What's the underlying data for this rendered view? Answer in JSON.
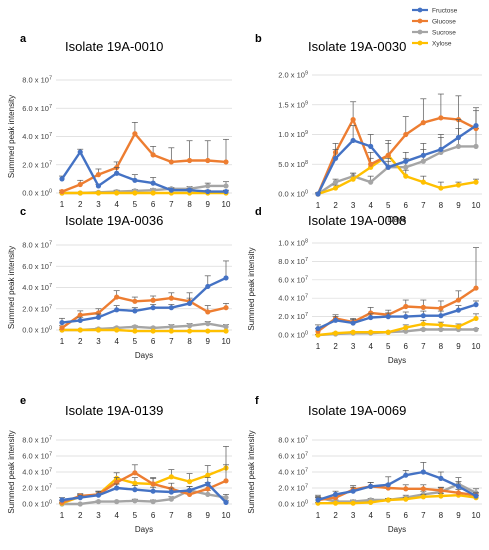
{
  "colors": {
    "Fructose": "#4472C4",
    "Glucose": "#ED7D31",
    "Sucrose": "#A5A5A5",
    "Xylose": "#FFC000"
  },
  "legend": [
    "Fructose",
    "Glucose",
    "Sucrose",
    "Xylose"
  ],
  "chart_data": [
    {
      "type": "line",
      "letter": "a",
      "title": "Isolate 19A-0010",
      "xlabel": "",
      "ylabel": "Summed peak intensity",
      "x": [
        1,
        2,
        3,
        4,
        5,
        6,
        7,
        8,
        9,
        10
      ],
      "ylim": [
        0,
        80000000.0
      ],
      "yticks": [
        0,
        20000000.0,
        40000000.0,
        60000000.0,
        80000000.0
      ],
      "ytick_labels": [
        [
          "0.0",
          "0"
        ],
        [
          "2.0",
          "7"
        ],
        [
          "4.0",
          "7"
        ],
        [
          "6.0",
          "7"
        ],
        [
          "8.0",
          "7"
        ]
      ],
      "series": [
        {
          "name": "Fructose",
          "values": [
            10000000.0,
            29000000.0,
            5000000.0,
            14000000.0,
            9000000.0,
            7000000.0,
            2000000.0,
            2000000.0,
            1000000.0,
            1000000.0
          ],
          "err": [
            2000000.0,
            2000000.0,
            1000000.0,
            4000000.0,
            4000000.0,
            4000000.0,
            1000000.0,
            1000000.0,
            1000000.0,
            1000000.0
          ]
        },
        {
          "name": "Glucose",
          "values": [
            1000000.0,
            6000000.0,
            13000000.0,
            18000000.0,
            42000000.0,
            27000000.0,
            22000000.0,
            23000000.0,
            23000000.0,
            22000000.0
          ],
          "err": [
            1000000.0,
            3000000.0,
            4000000.0,
            4000000.0,
            8000000.0,
            6000000.0,
            10000000.0,
            14000000.0,
            14000000.0,
            16000000.0
          ]
        },
        {
          "name": "Sucrose",
          "values": [
            0.0,
            0.0,
            500000.0,
            1000000.0,
            1500000.0,
            2000000.0,
            3000000.0,
            3000000.0,
            5000000.0,
            5000000.0
          ],
          "err": [
            500000.0,
            500000.0,
            500000.0,
            1000000.0,
            1000000.0,
            1000000.0,
            1000000.0,
            1500000.0,
            2000000.0,
            3000000.0
          ]
        },
        {
          "name": "Xylose",
          "values": [
            0.0,
            0.0,
            0.0,
            0.0,
            0.0,
            0.0,
            0.0,
            0.0,
            0.0,
            0.0
          ],
          "err": [
            0,
            0,
            0,
            0,
            0,
            0,
            0,
            0,
            0,
            0
          ]
        }
      ]
    },
    {
      "type": "line",
      "letter": "b",
      "title": "Isolate 19A-0030",
      "xlabel": "Days",
      "ylabel": "",
      "x": [
        1,
        2,
        3,
        4,
        5,
        6,
        7,
        8,
        9,
        10
      ],
      "ylim": [
        0,
        2000000000.0
      ],
      "yticks": [
        0,
        500000000.0,
        1000000000.0,
        1500000000.0,
        2000000000.0
      ],
      "ytick_labels": [
        [
          "0.0",
          "0"
        ],
        [
          "5.0",
          "8"
        ],
        [
          "1.0",
          "9"
        ],
        [
          "1.5",
          "9"
        ],
        [
          "2.0",
          "9"
        ]
      ],
      "series": [
        {
          "name": "Fructose",
          "values": [
            0.0,
            600000000.0,
            900000000.0,
            800000000.0,
            450000000.0,
            550000000.0,
            650000000.0,
            750000000.0,
            950000000.0,
            1150000000.0
          ],
          "err": [
            20000000.0,
            150000000.0,
            250000000.0,
            200000000.0,
            150000000.0,
            150000000.0,
            200000000.0,
            250000000.0,
            300000000.0,
            300000000.0
          ]
        },
        {
          "name": "Glucose",
          "values": [
            0.0,
            700000000.0,
            1250000000.0,
            500000000.0,
            650000000.0,
            1000000000.0,
            1200000000.0,
            1280000000.0,
            1250000000.0,
            1100000000.0
          ],
          "err": [
            20000000.0,
            150000000.0,
            300000000.0,
            200000000.0,
            250000000.0,
            300000000.0,
            400000000.0,
            400000000.0,
            400000000.0,
            300000000.0
          ]
        },
        {
          "name": "Sucrose",
          "values": [
            0.0,
            200000000.0,
            300000000.0,
            200000000.0,
            450000000.0,
            450000000.0,
            550000000.0,
            700000000.0,
            800000000.0,
            800000000.0
          ],
          "err": [
            20000000.0,
            50000000.0,
            50000000.0,
            100000000.0,
            100000000.0,
            150000000.0,
            200000000.0,
            250000000.0,
            300000000.0,
            300000000.0
          ]
        },
        {
          "name": "Xylose",
          "values": [
            0.0,
            100000000.0,
            250000000.0,
            450000000.0,
            650000000.0,
            300000000.0,
            200000000.0,
            100000000.0,
            150000000.0,
            200000000.0
          ],
          "err": [
            20000000.0,
            50000000.0,
            100000000.0,
            150000000.0,
            200000000.0,
            100000000.0,
            100000000.0,
            100000000.0,
            50000000.0,
            50000000.0
          ]
        }
      ]
    },
    {
      "type": "line",
      "letter": "c",
      "title": "Isolate 19A-0036",
      "xlabel": "Days",
      "ylabel": "Summed peak intensity",
      "x": [
        1,
        2,
        3,
        4,
        5,
        6,
        7,
        8,
        9,
        10
      ],
      "ylim": [
        0,
        80000000.0
      ],
      "yticks": [
        0,
        20000000.0,
        40000000.0,
        60000000.0,
        80000000.0
      ],
      "ytick_labels": [
        [
          "0.0",
          "0"
        ],
        [
          "2.0",
          "7"
        ],
        [
          "4.0",
          "7"
        ],
        [
          "6.0",
          "7"
        ],
        [
          "8.0",
          "7"
        ]
      ],
      "series": [
        {
          "name": "Fructose",
          "values": [
            7000000.0,
            9000000.0,
            12000000.0,
            19000000.0,
            18000000.0,
            21000000.0,
            21000000.0,
            25000000.0,
            41000000.0,
            49000000.0
          ],
          "err": [
            4000000.0,
            3000000.0,
            3000000.0,
            4000000.0,
            3000000.0,
            3000000.0,
            3000000.0,
            5000000.0,
            10000000.0,
            16000000.0
          ]
        },
        {
          "name": "Glucose",
          "values": [
            2000000.0,
            14000000.0,
            16000000.0,
            31000000.0,
            27000000.0,
            28000000.0,
            30000000.0,
            27000000.0,
            17000000.0,
            21000000.0
          ],
          "err": [
            2000000.0,
            4000000.0,
            4000000.0,
            6000000.0,
            4000000.0,
            4000000.0,
            5000000.0,
            8000000.0,
            6000000.0,
            4000000.0
          ]
        },
        {
          "name": "Sucrose",
          "values": [
            0.0,
            0.0,
            1000000.0,
            2000000.0,
            3000000.0,
            2000000.0,
            3000000.0,
            4000000.0,
            6000000.0,
            3000000.0
          ],
          "err": [
            500000.0,
            500000.0,
            1000000.0,
            1000000.0,
            1000000.0,
            1000000.0,
            2000000.0,
            2000000.0,
            2000000.0,
            2000000.0
          ]
        },
        {
          "name": "Xylose",
          "values": [
            0.0,
            0.0,
            0.0,
            0.0,
            -1000000.0,
            -1000000.0,
            -1000000.0,
            -1000000.0,
            -1000000.0,
            -1000000.0
          ],
          "err": [
            0,
            0,
            0,
            0,
            0,
            0,
            0,
            0,
            0,
            0
          ]
        }
      ]
    },
    {
      "type": "line",
      "letter": "d",
      "title": "Isolate 19A-0008",
      "xlabel": "Days",
      "ylabel": "Summed peak intensity",
      "x": [
        1,
        2,
        3,
        4,
        5,
        6,
        7,
        8,
        9,
        10
      ],
      "ylim": [
        0,
        100000000.0
      ],
      "yticks": [
        0,
        20000000.0,
        40000000.0,
        60000000.0,
        80000000.0,
        100000000.0
      ],
      "ytick_labels": [
        [
          "0.0",
          "0"
        ],
        [
          "2.0",
          "7"
        ],
        [
          "4.0",
          "7"
        ],
        [
          "6.0",
          "7"
        ],
        [
          "8.0",
          "7"
        ],
        [
          "1.0",
          "8"
        ]
      ],
      "series": [
        {
          "name": "Fructose",
          "values": [
            7000000.0,
            16000000.0,
            13000000.0,
            19000000.0,
            20000000.0,
            20000000.0,
            21000000.0,
            21000000.0,
            27000000.0,
            33000000.0
          ],
          "err": [
            4000000.0,
            4000000.0,
            4000000.0,
            4000000.0,
            4000000.0,
            5000000.0,
            5000000.0,
            5000000.0,
            5000000.0,
            4000000.0
          ]
        },
        {
          "name": "Glucose",
          "values": [
            4000000.0,
            18000000.0,
            14000000.0,
            24000000.0,
            22000000.0,
            31000000.0,
            30000000.0,
            29000000.0,
            38000000.0,
            51000000.0
          ],
          "err": [
            3000000.0,
            4000000.0,
            4000000.0,
            6000000.0,
            5000000.0,
            7000000.0,
            8000000.0,
            8000000.0,
            10000000.0,
            44000000.0
          ]
        },
        {
          "name": "Sucrose",
          "values": [
            0.0,
            1000000.0,
            2000000.0,
            2000000.0,
            3000000.0,
            4000000.0,
            6000000.0,
            6000000.0,
            6000000.0,
            6000000.0
          ],
          "err": [
            500000.0,
            1000000.0,
            1000000.0,
            1000000.0,
            1000000.0,
            1000000.0,
            1000000.0,
            1000000.0,
            1000000.0,
            1000000.0
          ]
        },
        {
          "name": "Xylose",
          "values": [
            0.0,
            2000000.0,
            3000000.0,
            3000000.0,
            3000000.0,
            8000000.0,
            12000000.0,
            11000000.0,
            9000000.0,
            18000000.0
          ],
          "err": [
            500000.0,
            1000000.0,
            1000000.0,
            1000000.0,
            1000000.0,
            3000000.0,
            4000000.0,
            3000000.0,
            3000000.0,
            5000000.0
          ]
        }
      ]
    },
    {
      "type": "line",
      "letter": "e",
      "title": "Isolate 19A-0139",
      "xlabel": "Days",
      "ylabel": "Summed peak intensity",
      "x": [
        1,
        2,
        3,
        4,
        5,
        6,
        7,
        8,
        9,
        10
      ],
      "ylim": [
        0,
        80000000.0
      ],
      "yticks": [
        0,
        20000000.0,
        40000000.0,
        60000000.0,
        80000000.0
      ],
      "ytick_labels": [
        [
          "0.0",
          "0"
        ],
        [
          "2.0",
          "7"
        ],
        [
          "4.0",
          "7"
        ],
        [
          "6.0",
          "7"
        ],
        [
          "8.0",
          "7"
        ]
      ],
      "series": [
        {
          "name": "Fructose",
          "values": [
            5000000.0,
            8000000.0,
            11000000.0,
            20000000.0,
            18000000.0,
            16000000.0,
            15000000.0,
            17000000.0,
            25000000.0,
            2000000.0
          ],
          "err": [
            3000000.0,
            3000000.0,
            4000000.0,
            5000000.0,
            5000000.0,
            5000000.0,
            5000000.0,
            5000000.0,
            8000000.0,
            2000000.0
          ]
        },
        {
          "name": "Glucose",
          "values": [
            2000000.0,
            10000000.0,
            12000000.0,
            27000000.0,
            39000000.0,
            25000000.0,
            19000000.0,
            12000000.0,
            19000000.0,
            29000000.0
          ],
          "err": [
            2000000.0,
            3000000.0,
            4000000.0,
            6000000.0,
            10000000.0,
            7000000.0,
            7000000.0,
            6000000.0,
            8000000.0,
            20000000.0
          ]
        },
        {
          "name": "Sucrose",
          "values": [
            0.0,
            0.0,
            3000000.0,
            3000000.0,
            4000000.0,
            3000000.0,
            6000000.0,
            17000000.0,
            12000000.0,
            8000000.0
          ],
          "err": [
            500000.0,
            500000.0,
            1000000.0,
            1000000.0,
            2000000.0,
            2000000.0,
            3000000.0,
            5000000.0,
            5000000.0,
            4000000.0
          ]
        },
        {
          "name": "Xylose",
          "values": [
            1000000.0,
            9000000.0,
            12000000.0,
            32000000.0,
            26000000.0,
            25000000.0,
            34000000.0,
            28000000.0,
            36000000.0,
            45000000.0
          ],
          "err": [
            1000000.0,
            3000000.0,
            4000000.0,
            7000000.0,
            7000000.0,
            8000000.0,
            9000000.0,
            10000000.0,
            12000000.0,
            27000000.0
          ]
        }
      ]
    },
    {
      "type": "line",
      "letter": "f",
      "title": "Isolate 19A-0069",
      "xlabel": "Days",
      "ylabel": "Summed peak intensity",
      "x": [
        1,
        2,
        3,
        4,
        5,
        6,
        7,
        8,
        9,
        10
      ],
      "ylim": [
        0,
        80000000.0
      ],
      "yticks": [
        0,
        20000000.0,
        40000000.0,
        60000000.0,
        80000000.0
      ],
      "ytick_labels": [
        [
          "0.0",
          "0"
        ],
        [
          "2.0",
          "7"
        ],
        [
          "4.0",
          "7"
        ],
        [
          "6.0",
          "7"
        ],
        [
          "8.0",
          "7"
        ]
      ],
      "series": [
        {
          "name": "Fructose",
          "values": [
            5000000.0,
            12000000.0,
            16000000.0,
            22000000.0,
            24000000.0,
            36000000.0,
            40000000.0,
            32000000.0,
            22000000.0,
            10000000.0
          ],
          "err": [
            3000000.0,
            4000000.0,
            5000000.0,
            5000000.0,
            10000000.0,
            6000000.0,
            12000000.0,
            8000000.0,
            6000000.0,
            4000000.0
          ]
        },
        {
          "name": "Glucose",
          "values": [
            5000000.0,
            8000000.0,
            18000000.0,
            22000000.0,
            20000000.0,
            19000000.0,
            19000000.0,
            17000000.0,
            14000000.0,
            11000000.0
          ],
          "err": [
            4000000.0,
            4000000.0,
            5000000.0,
            5000000.0,
            5000000.0,
            5000000.0,
            5000000.0,
            4000000.0,
            4000000.0,
            3000000.0
          ]
        },
        {
          "name": "Sucrose",
          "values": [
            8000000.0,
            3000000.0,
            3000000.0,
            5000000.0,
            5000000.0,
            8000000.0,
            12000000.0,
            15000000.0,
            25000000.0,
            14000000.0
          ],
          "err": [
            3000000.0,
            2000000.0,
            2000000.0,
            2000000.0,
            2000000.0,
            3000000.0,
            4000000.0,
            5000000.0,
            8000000.0,
            5000000.0
          ]
        },
        {
          "name": "Xylose",
          "values": [
            1000000.0,
            1000000.0,
            1000000.0,
            2000000.0,
            5000000.0,
            6000000.0,
            9000000.0,
            10000000.0,
            11000000.0,
            8000000.0
          ],
          "err": [
            1000000.0,
            1000000.0,
            1000000.0,
            1000000.0,
            2000000.0,
            2000000.0,
            3000000.0,
            3000000.0,
            3000000.0,
            3000000.0
          ]
        }
      ]
    }
  ]
}
